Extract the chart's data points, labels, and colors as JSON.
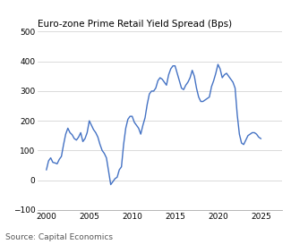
{
  "title": "Euro-zone Prime Retail Yield Spread (Bps)",
  "source": "Source: Capital Economics",
  "line_color": "#4472C4",
  "background_color": "#ffffff",
  "ylim": [
    -100,
    500
  ],
  "yticks": [
    -100,
    0,
    100,
    200,
    300,
    400,
    500
  ],
  "xticks": [
    2000,
    2005,
    2010,
    2015,
    2020,
    2025
  ],
  "xlim": [
    1999.0,
    2027.5
  ],
  "data": [
    [
      2000.0,
      35
    ],
    [
      2000.25,
      65
    ],
    [
      2000.5,
      75
    ],
    [
      2000.75,
      60
    ],
    [
      2001.0,
      58
    ],
    [
      2001.25,
      55
    ],
    [
      2001.5,
      70
    ],
    [
      2001.75,
      80
    ],
    [
      2002.0,
      120
    ],
    [
      2002.25,
      155
    ],
    [
      2002.5,
      175
    ],
    [
      2002.75,
      160
    ],
    [
      2003.0,
      153
    ],
    [
      2003.25,
      140
    ],
    [
      2003.5,
      135
    ],
    [
      2003.75,
      145
    ],
    [
      2004.0,
      160
    ],
    [
      2004.25,
      130
    ],
    [
      2004.5,
      140
    ],
    [
      2004.75,
      160
    ],
    [
      2005.0,
      200
    ],
    [
      2005.25,
      185
    ],
    [
      2005.5,
      170
    ],
    [
      2005.75,
      160
    ],
    [
      2006.0,
      145
    ],
    [
      2006.25,
      120
    ],
    [
      2006.5,
      100
    ],
    [
      2006.75,
      90
    ],
    [
      2007.0,
      75
    ],
    [
      2007.25,
      30
    ],
    [
      2007.5,
      -15
    ],
    [
      2007.75,
      -5
    ],
    [
      2008.0,
      5
    ],
    [
      2008.25,
      10
    ],
    [
      2008.5,
      35
    ],
    [
      2008.75,
      45
    ],
    [
      2009.0,
      120
    ],
    [
      2009.25,
      175
    ],
    [
      2009.5,
      205
    ],
    [
      2009.75,
      215
    ],
    [
      2010.0,
      215
    ],
    [
      2010.25,
      195
    ],
    [
      2010.5,
      185
    ],
    [
      2010.75,
      175
    ],
    [
      2011.0,
      155
    ],
    [
      2011.25,
      185
    ],
    [
      2011.5,
      210
    ],
    [
      2011.75,
      255
    ],
    [
      2012.0,
      290
    ],
    [
      2012.25,
      300
    ],
    [
      2012.5,
      300
    ],
    [
      2012.75,
      310
    ],
    [
      2013.0,
      335
    ],
    [
      2013.25,
      345
    ],
    [
      2013.5,
      340
    ],
    [
      2013.75,
      330
    ],
    [
      2014.0,
      320
    ],
    [
      2014.25,
      355
    ],
    [
      2014.5,
      375
    ],
    [
      2014.75,
      385
    ],
    [
      2015.0,
      385
    ],
    [
      2015.25,
      360
    ],
    [
      2015.5,
      335
    ],
    [
      2015.75,
      310
    ],
    [
      2016.0,
      305
    ],
    [
      2016.25,
      320
    ],
    [
      2016.5,
      330
    ],
    [
      2016.75,
      345
    ],
    [
      2017.0,
      370
    ],
    [
      2017.25,
      350
    ],
    [
      2017.5,
      310
    ],
    [
      2017.75,
      280
    ],
    [
      2018.0,
      265
    ],
    [
      2018.25,
      265
    ],
    [
      2018.5,
      270
    ],
    [
      2018.75,
      275
    ],
    [
      2019.0,
      280
    ],
    [
      2019.25,
      315
    ],
    [
      2019.5,
      335
    ],
    [
      2019.75,
      360
    ],
    [
      2020.0,
      390
    ],
    [
      2020.25,
      375
    ],
    [
      2020.5,
      345
    ],
    [
      2020.75,
      355
    ],
    [
      2021.0,
      360
    ],
    [
      2021.25,
      350
    ],
    [
      2021.5,
      340
    ],
    [
      2021.75,
      330
    ],
    [
      2022.0,
      310
    ],
    [
      2022.25,
      220
    ],
    [
      2022.5,
      155
    ],
    [
      2022.75,
      125
    ],
    [
      2023.0,
      120
    ],
    [
      2023.25,
      135
    ],
    [
      2023.5,
      150
    ],
    [
      2023.75,
      155
    ],
    [
      2024.0,
      160
    ],
    [
      2024.25,
      160
    ],
    [
      2024.5,
      155
    ],
    [
      2024.75,
      145
    ],
    [
      2025.0,
      140
    ]
  ]
}
